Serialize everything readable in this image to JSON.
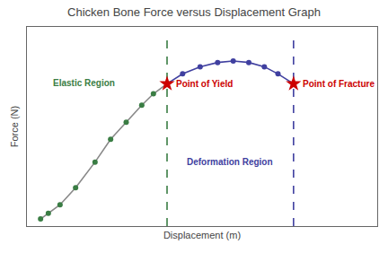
{
  "chart_data": {
    "type": "line",
    "title": "Chicken Bone Force versus Displacement Graph",
    "xlabel": "Displacement (m)",
    "ylabel": "Force (N)",
    "xlim": [
      -0.05,
      1.75
    ],
    "ylim": [
      -0.05,
      1.35
    ],
    "xticks": [],
    "yticks": [],
    "tick_labels": false,
    "grid": false,
    "series": [
      {
        "type": "line",
        "color": "#888888",
        "marker": "none",
        "line_style": "solid",
        "x": [
          0.02,
          0.06,
          0.12,
          0.2,
          0.3,
          0.38,
          0.46,
          0.54,
          0.6,
          0.67
        ],
        "values": [
          0.0,
          0.04,
          0.1,
          0.22,
          0.4,
          0.56,
          0.68,
          0.8,
          0.88,
          0.95
        ]
      },
      {
        "type": "scatter",
        "color": "#3a7d44",
        "marker": "circle",
        "x": [
          0.02,
          0.06,
          0.12,
          0.2,
          0.3,
          0.38,
          0.46,
          0.54,
          0.6,
          0.67
        ],
        "values": [
          0.0,
          0.04,
          0.1,
          0.22,
          0.4,
          0.56,
          0.68,
          0.8,
          0.88,
          0.95
        ]
      },
      {
        "type": "line",
        "color": "#4040a0",
        "marker": "circle",
        "line_style": "solid",
        "x": [
          0.67,
          0.75,
          0.84,
          0.93,
          1.01,
          1.09,
          1.17,
          1.24,
          1.32
        ],
        "values": [
          0.95,
          1.02,
          1.07,
          1.1,
          1.11,
          1.1,
          1.07,
          1.02,
          0.95
        ]
      },
      {
        "type": "line",
        "color": "#3a7d44",
        "marker": "none",
        "line_style": "dashed",
        "x": [
          0.67,
          0.67
        ],
        "values": [
          -0.05,
          1.3
        ]
      },
      {
        "type": "line",
        "color": "#4040a0",
        "marker": "none",
        "line_style": "dashed",
        "x": [
          1.32,
          1.32
        ],
        "values": [
          -0.05,
          1.3
        ]
      },
      {
        "type": "scatter",
        "color": "#cc0000",
        "marker": "star",
        "x": [
          0.67,
          1.32
        ],
        "values": [
          0.95,
          0.95
        ]
      }
    ],
    "annotations": [
      {
        "text": "Elastic Region",
        "color": "#3a7d44"
      },
      {
        "text": "Deformation Region",
        "color": "#4040a0"
      },
      {
        "text": "Point of Yield",
        "x": 0.67,
        "y": 0.95,
        "color": "#cc0000"
      },
      {
        "text": "Point of Fracture",
        "x": 1.32,
        "y": 0.95,
        "color": "#cc0000"
      }
    ]
  }
}
